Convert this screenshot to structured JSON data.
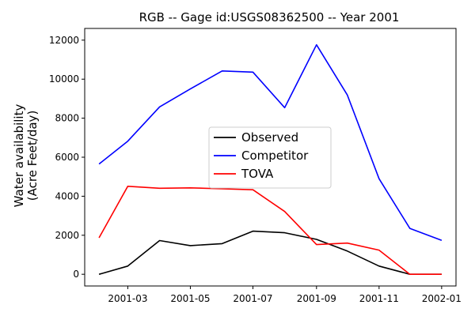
{
  "chart_data": {
    "type": "line",
    "title": "RGB -- Gage id:USGS08362500 -- Year 2001",
    "xlabel": "",
    "ylabel_lines": [
      "Water availability",
      "(Acre Feet/day)"
    ],
    "x": [
      "2001-02-01",
      "2001-03-01",
      "2001-04-01",
      "2001-05-01",
      "2001-06-01",
      "2001-07-01",
      "2001-08-01",
      "2001-09-01",
      "2001-10-01",
      "2001-11-01",
      "2001-12-01",
      "2002-01-01"
    ],
    "xlim": [
      "2001-01-18",
      "2002-01-15"
    ],
    "ylim": [
      -600,
      12600
    ],
    "x_ticks": [
      {
        "date": "2001-03-01",
        "label": "2001-03"
      },
      {
        "date": "2001-05-01",
        "label": "2001-05"
      },
      {
        "date": "2001-07-01",
        "label": "2001-07"
      },
      {
        "date": "2001-09-01",
        "label": "2001-09"
      },
      {
        "date": "2001-11-01",
        "label": "2001-11"
      },
      {
        "date": "2002-01-01",
        "label": "2002-01"
      }
    ],
    "y_ticks": [
      {
        "value": 0,
        "label": "0"
      },
      {
        "value": 2000,
        "label": "2000"
      },
      {
        "value": 4000,
        "label": "4000"
      },
      {
        "value": 6000,
        "label": "6000"
      },
      {
        "value": 8000,
        "label": "8000"
      },
      {
        "value": 10000,
        "label": "10000"
      },
      {
        "value": 12000,
        "label": "12000"
      }
    ],
    "grid": false,
    "legend_position": "center",
    "series": [
      {
        "name": "Observed",
        "color": "#000000",
        "values": [
          0,
          420,
          1730,
          1470,
          1570,
          2210,
          2130,
          1790,
          1190,
          420,
          0,
          0
        ]
      },
      {
        "name": "Competitor",
        "color": "#0000ff",
        "values": [
          5650,
          6820,
          8580,
          9500,
          10420,
          10360,
          8540,
          11760,
          9190,
          4900,
          2350,
          1740
        ]
      },
      {
        "name": "TOVA",
        "color": "#ff0000",
        "values": [
          1870,
          4510,
          4410,
          4430,
          4380,
          4330,
          3220,
          1520,
          1600,
          1240,
          0,
          0
        ]
      }
    ]
  }
}
